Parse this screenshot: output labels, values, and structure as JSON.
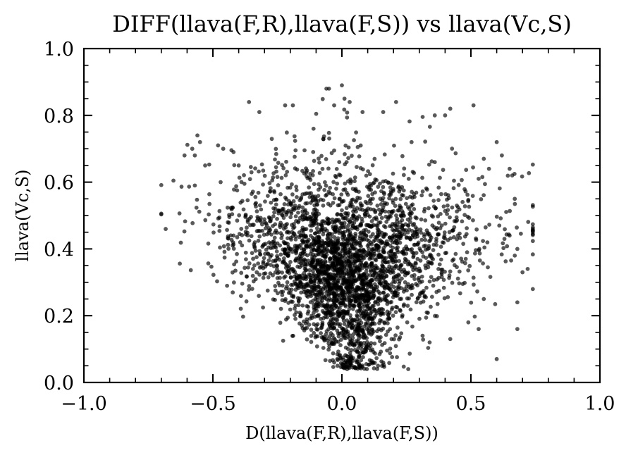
{
  "chart_data": {
    "type": "scatter",
    "title": "DIFF(llava(F,R),llava(F,S)) vs llava(Vc,S)",
    "xlabel": "D(llava(F,R),llava(F,S))",
    "ylabel": "llava(Vc,S)",
    "xlim": [
      -1.0,
      1.0
    ],
    "ylim": [
      0.0,
      1.0
    ],
    "x_ticks": [
      -1.0,
      -0.5,
      0.0,
      0.5,
      1.0
    ],
    "x_tick_labels": [
      "−1.0",
      "−0.5",
      "0.0",
      "0.5",
      "1.0"
    ],
    "y_ticks": [
      0.0,
      0.2,
      0.4,
      0.6,
      0.8,
      1.0
    ],
    "y_tick_labels": [
      "0.0",
      "0.2",
      "0.4",
      "0.6",
      "0.8",
      "1.0"
    ],
    "grid": false,
    "marker_color": "#000000",
    "marker_opacity": 0.65,
    "points": [
      [
        -0.61,
        0.68
      ],
      [
        -0.58,
        0.7
      ],
      [
        -0.56,
        0.74
      ],
      [
        -0.55,
        0.72
      ],
      [
        -0.57,
        0.68
      ],
      [
        -0.53,
        0.65
      ],
      [
        -0.57,
        0.59
      ],
      [
        -0.48,
        0.71
      ],
      [
        -0.46,
        0.7
      ],
      [
        -0.47,
        0.6
      ],
      [
        -0.42,
        0.69
      ],
      [
        -0.4,
        0.65
      ],
      [
        -0.42,
        0.44
      ],
      [
        -0.39,
        0.46
      ],
      [
        -0.36,
        0.84
      ],
      [
        -0.32,
        0.81
      ],
      [
        -0.33,
        0.33
      ],
      [
        -0.22,
        0.83
      ],
      [
        -0.19,
        0.83
      ],
      [
        -0.23,
        0.29
      ],
      [
        -0.11,
        0.76
      ],
      [
        -0.06,
        0.88
      ],
      [
        -0.05,
        0.88
      ],
      [
        -0.03,
        0.83
      ],
      [
        0.0,
        0.89
      ],
      [
        0.01,
        0.85
      ],
      [
        0.03,
        0.84
      ],
      [
        0.08,
        0.81
      ],
      [
        0.16,
        0.81
      ],
      [
        0.21,
        0.84
      ],
      [
        0.27,
        0.72
      ],
      [
        0.36,
        0.8
      ],
      [
        0.4,
        0.8
      ],
      [
        0.42,
        0.82
      ],
      [
        0.51,
        0.83
      ],
      [
        0.36,
        0.66
      ],
      [
        0.53,
        0.61
      ],
      [
        0.55,
        0.67
      ],
      [
        0.57,
        0.64
      ],
      [
        0.6,
        0.72
      ],
      [
        0.62,
        0.68
      ],
      [
        0.65,
        0.64
      ],
      [
        0.66,
        0.62
      ],
      [
        0.67,
        0.55
      ],
      [
        0.61,
        0.47
      ],
      [
        0.63,
        0.43
      ],
      [
        0.65,
        0.44
      ],
      [
        0.67,
        0.38
      ],
      [
        0.68,
        0.4
      ],
      [
        0.7,
        0.33
      ],
      [
        0.72,
        0.34
      ],
      [
        0.68,
        0.24
      ],
      [
        0.68,
        0.16
      ],
      [
        0.6,
        0.07
      ],
      [
        0.53,
        0.16
      ],
      [
        0.49,
        0.18
      ],
      [
        0.42,
        0.13
      ],
      [
        0.34,
        0.12
      ],
      [
        0.14,
        0.05
      ],
      [
        0.02,
        0.04
      ],
      [
        -0.03,
        0.06
      ],
      [
        0.55,
        0.25
      ],
      [
        0.48,
        0.37
      ]
    ]
  }
}
